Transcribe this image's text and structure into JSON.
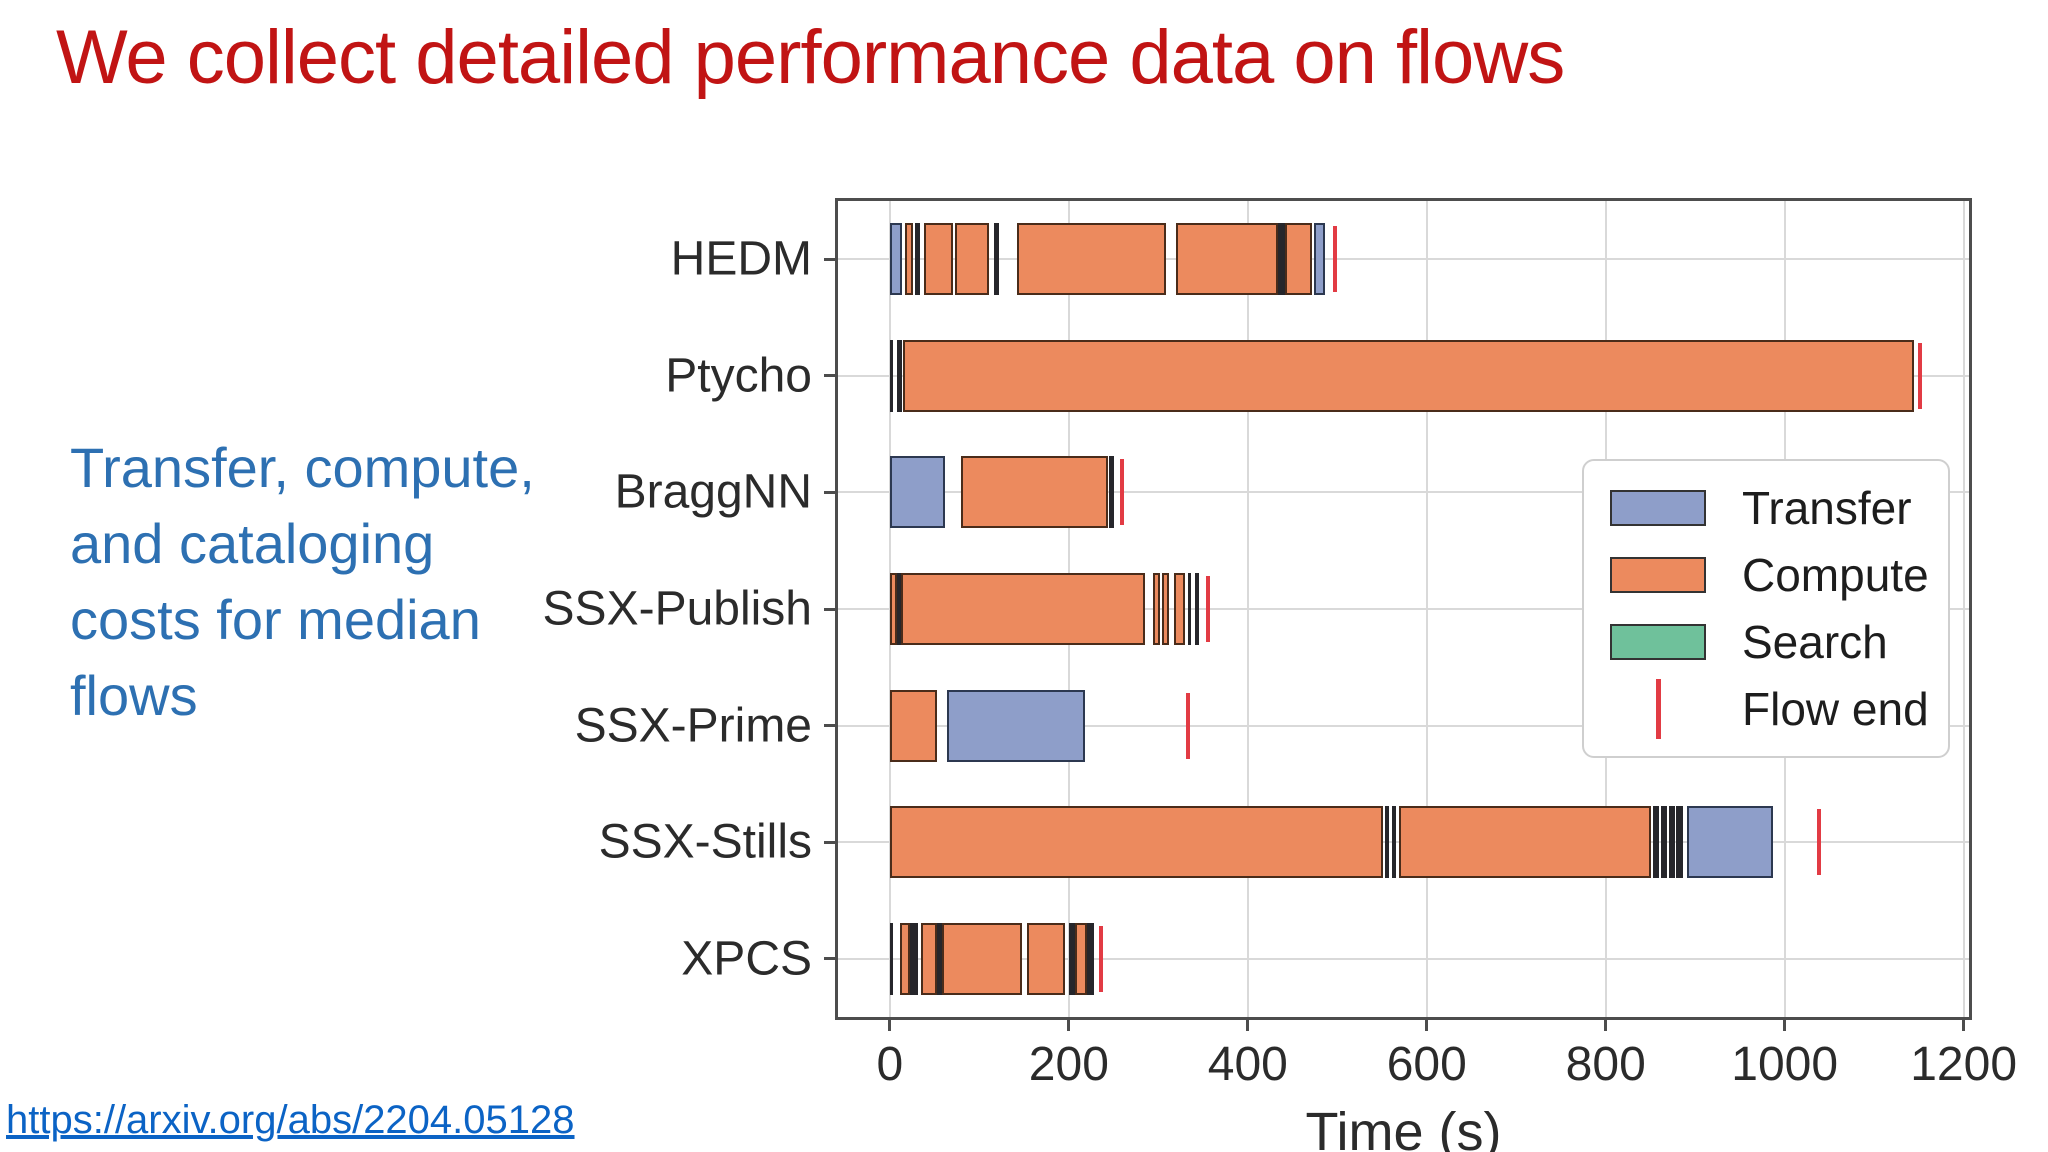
{
  "slide": {
    "title": "We collect detailed performance data on flows",
    "subtitle": "Transfer, compute,\nand cataloging\ncosts for median\nflows",
    "link": "https://arxiv.org/abs/2204.05128"
  },
  "colors": {
    "title": "#c11414",
    "subtitle": "#2d70b2",
    "link": "#0b63c5",
    "transfer": "#8e9ec9",
    "compute": "#ec8a5e",
    "search": "#6fc19b",
    "flow_end": "#e23b44",
    "dark_segment": "#26262b",
    "segment_border": "#35302c",
    "transfer_border": "#2c3850",
    "compute_border": "#4a2c1a",
    "search_border": "#1f4d39",
    "grid": "#d9d9d9",
    "plot_border": "#4d4d4d",
    "axis_text": "#2b2b2b"
  },
  "chart_data": {
    "type": "bar",
    "subtype": "horizontal-flow-timeline",
    "title": "",
    "xlabel": "Time (s)",
    "ylabel": "",
    "x_range": [
      -58,
      1206
    ],
    "x_ticks": [
      0,
      200,
      400,
      600,
      800,
      1000,
      1200
    ],
    "grid": "on",
    "legend_position": "center-right",
    "categories": [
      "HEDM",
      "Ptycho",
      "BraggNN",
      "SSX-Publish",
      "SSX-Prime",
      "SSX-Stills",
      "XPCS"
    ],
    "legend": [
      {
        "label": "Transfer",
        "swatch": "box",
        "color_key": "transfer"
      },
      {
        "label": "Compute",
        "swatch": "box",
        "color_key": "compute"
      },
      {
        "label": "Search",
        "swatch": "box",
        "color_key": "search"
      },
      {
        "label": "Flow end",
        "swatch": "vline",
        "color_key": "flow_end"
      }
    ],
    "flows": [
      {
        "name": "HEDM",
        "flow_end": 498,
        "segments": [
          [
            "transfer",
            0,
            13
          ],
          [
            "compute",
            17,
            26
          ],
          [
            "dark",
            28,
            34
          ],
          [
            "compute",
            38,
            70
          ],
          [
            "compute",
            73,
            111
          ],
          [
            "dark",
            116,
            122
          ],
          [
            "compute",
            142,
            309
          ],
          [
            "compute",
            320,
            434
          ],
          [
            "dark",
            434,
            442
          ],
          [
            "compute",
            442,
            472
          ],
          [
            "transfer",
            474,
            486
          ]
        ]
      },
      {
        "name": "Ptycho",
        "flow_end": 1151,
        "segments": [
          [
            "dark",
            0,
            3
          ],
          [
            "dark",
            8,
            13
          ],
          [
            "compute",
            15,
            1144
          ]
        ]
      },
      {
        "name": "BraggNN",
        "flow_end": 259,
        "segments": [
          [
            "transfer",
            0,
            62
          ],
          [
            "compute",
            79,
            244
          ],
          [
            "dark",
            245,
            251
          ]
        ]
      },
      {
        "name": "SSX-Publish",
        "flow_end": 356,
        "segments": [
          [
            "compute",
            0,
            8
          ],
          [
            "dark",
            8,
            12
          ],
          [
            "compute",
            12,
            285
          ],
          [
            "compute",
            294,
            302
          ],
          [
            "compute",
            304,
            312
          ],
          [
            "compute",
            318,
            330
          ],
          [
            "dark",
            333,
            337
          ],
          [
            "dark",
            341,
            345
          ]
        ]
      },
      {
        "name": "SSX-Prime",
        "flow_end": 333,
        "segments": [
          [
            "compute",
            0,
            53
          ],
          [
            "transfer",
            64,
            218
          ]
        ]
      },
      {
        "name": "SSX-Stills",
        "flow_end": 1038,
        "segments": [
          [
            "compute",
            0,
            551
          ],
          [
            "dark",
            553,
            558
          ],
          [
            "dark",
            561,
            566
          ],
          [
            "compute",
            569,
            851
          ],
          [
            "dark",
            853,
            859
          ],
          [
            "dark",
            862,
            868
          ],
          [
            "dark",
            871,
            878
          ],
          [
            "dark",
            879,
            886
          ],
          [
            "transfer",
            891,
            987
          ]
        ]
      },
      {
        "name": "XPCS",
        "flow_end": 236,
        "segments": [
          [
            "dark",
            0,
            3
          ],
          [
            "compute",
            11,
            22
          ],
          [
            "dark",
            22,
            31
          ],
          [
            "compute",
            35,
            53
          ],
          [
            "dark",
            53,
            58
          ],
          [
            "compute",
            58,
            148
          ],
          [
            "compute",
            153,
            196
          ],
          [
            "dark",
            200,
            207
          ],
          [
            "compute",
            207,
            220
          ],
          [
            "dark",
            220,
            228
          ]
        ]
      }
    ]
  }
}
